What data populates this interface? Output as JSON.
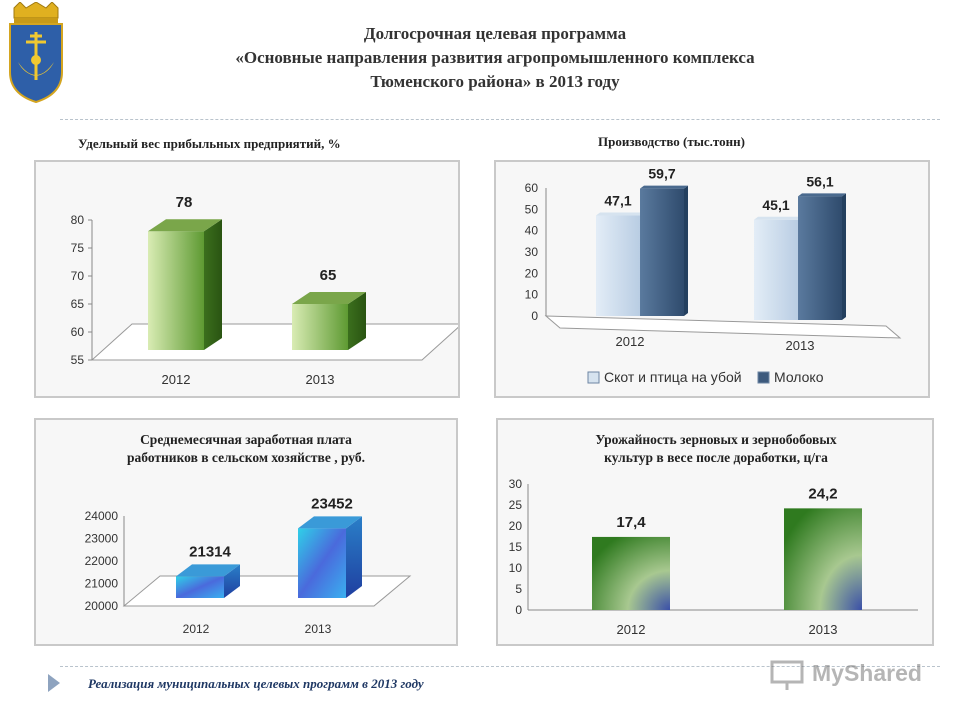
{
  "header": {
    "title_lines": [
      "Долгосрочная целевая программа",
      "«Основные направления развития агропромышленного комплекса",
      "Тюменского района» в 2013 году"
    ]
  },
  "footer": {
    "text": "Реализация муниципальных целевых программ в 2013 году"
  },
  "watermark": {
    "text": "MyShared"
  },
  "colors": {
    "accent": "#1f3864",
    "green_light": "#b7d97f",
    "green_dark": "#3d7a1f",
    "bar_light": "#c8d8e8",
    "bar_dark": "#3d5a7d"
  },
  "chart_data": [
    {
      "id": "profitable",
      "type": "bar",
      "title": "Удельный вес прибыльных предприятий, %",
      "categories": [
        "2012",
        "2013"
      ],
      "values": [
        78,
        65
      ],
      "data_labels": [
        "78",
        "65"
      ],
      "ylim": [
        55,
        80
      ],
      "ticks": [
        "55",
        "60",
        "65",
        "70",
        "75",
        "80"
      ],
      "tick_values": [
        55,
        60,
        65,
        70,
        75,
        80
      ]
    },
    {
      "id": "production",
      "type": "bar",
      "title": "Производство (тыс.тонн)",
      "categories": [
        "2012",
        "2013"
      ],
      "series": [
        {
          "name": "Скот и птица на убой",
          "values": [
            47.1,
            45.1
          ],
          "labels": [
            "47,1",
            "45,1"
          ]
        },
        {
          "name": "Молоко",
          "values": [
            59.7,
            56.1
          ],
          "labels": [
            "59,7",
            "56,1"
          ]
        }
      ],
      "ylim": [
        0,
        60
      ],
      "ticks": [
        "0",
        "10",
        "20",
        "30",
        "40",
        "50",
        "60"
      ],
      "tick_values": [
        0,
        10,
        20,
        30,
        40,
        50,
        60
      ],
      "legend": "bottom"
    },
    {
      "id": "salary",
      "type": "bar",
      "title": "Среднемесячная заработная плата работников в сельском хозяйстве , руб.",
      "title_lines": [
        "Среднемесячная заработная плата",
        "работников в сельском хозяйстве , руб."
      ],
      "categories": [
        "2012",
        "2013"
      ],
      "values": [
        21314,
        23452
      ],
      "data_labels": [
        "21314",
        "23452"
      ],
      "ylim": [
        20000,
        24000
      ],
      "ticks": [
        "20000",
        "21000",
        "22000",
        "23000",
        "24000"
      ],
      "tick_values": [
        20000,
        21000,
        22000,
        23000,
        24000
      ]
    },
    {
      "id": "yield",
      "type": "bar",
      "title": "Урожайность зерновых и зернобобовых культур в весе после доработки, ц/га",
      "title_lines": [
        "Урожайность зерновых и зернобобовых",
        "культур в весе после доработки, ц/га"
      ],
      "categories": [
        "2012",
        "2013"
      ],
      "values": [
        17.4,
        24.2
      ],
      "data_labels": [
        "17,4",
        "24,2"
      ],
      "ylim": [
        0,
        30
      ],
      "ticks": [
        "0",
        "5",
        "10",
        "15",
        "20",
        "25",
        "30"
      ],
      "tick_values": [
        0,
        5,
        10,
        15,
        20,
        25,
        30
      ]
    }
  ]
}
